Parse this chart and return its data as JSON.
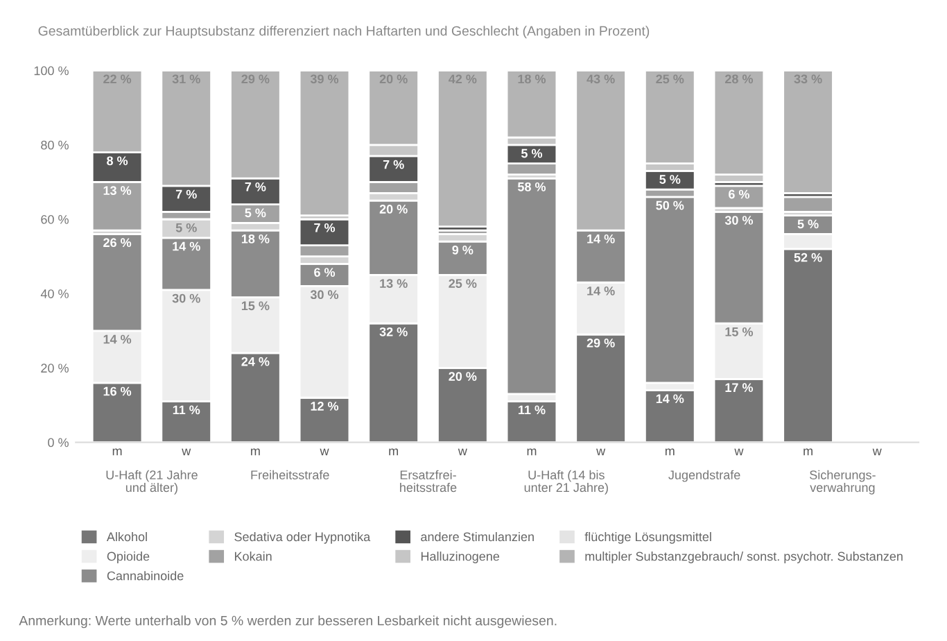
{
  "chart_data": {
    "type": "bar",
    "stacked": true,
    "title": "Gesamtüberblick zur Hauptsubstanz differenziert nach Haftarten und Geschlecht (Angaben in Prozent)",
    "categories": [
      "m",
      "w",
      "m",
      "w",
      "m",
      "w",
      "m",
      "w",
      "m",
      "w",
      "m",
      "w"
    ],
    "ylim": [
      0,
      100
    ],
    "yticks": [
      {
        "value": 0,
        "label": "0 %"
      },
      {
        "value": 20,
        "label": "20 %"
      },
      {
        "value": 40,
        "label": "40 %"
      },
      {
        "value": 60,
        "label": "60 %"
      },
      {
        "value": 80,
        "label": "80 %"
      },
      {
        "value": 100,
        "label": "100 %"
      }
    ],
    "legend": "bottom",
    "series": [
      {
        "name": "Alkohol",
        "color": "#767676",
        "values": [
          16,
          11,
          24,
          12,
          32,
          20,
          11,
          29,
          14,
          17,
          52,
          null
        ],
        "value_labels": [
          "16 %",
          "11 %",
          "24 %",
          "12 %",
          "32 %",
          "20 %",
          "11 %",
          "29 %",
          "14 %",
          "17 %",
          "52 %",
          null
        ]
      },
      {
        "name": "Opioide",
        "color": "#eeeeee",
        "values": [
          14,
          30,
          15,
          30,
          13,
          25,
          2,
          14,
          2,
          15,
          4,
          null
        ],
        "value_labels": [
          "14 %",
          "30 %",
          "15 %",
          "30 %",
          "13 %",
          "25 %",
          null,
          "14 %",
          null,
          "15 %",
          null,
          null
        ]
      },
      {
        "name": "Cannabinoide",
        "color": "#8c8c8c",
        "values": [
          26,
          14,
          18,
          6,
          20,
          9,
          58,
          14,
          50,
          30,
          5,
          null
        ],
        "value_labels": [
          "26 %",
          "14 %",
          "18 %",
          "6 %",
          "20 %",
          "9 %",
          "58 %",
          "14 %",
          "50 %",
          "30 %",
          "5 %",
          null
        ]
      },
      {
        "name": "Sedativa oder Hypnotika",
        "color": "#d4d4d4",
        "values": [
          1,
          5,
          2,
          2,
          2,
          2,
          1,
          0,
          0,
          1,
          1,
          null
        ],
        "value_labels": [
          null,
          "5 %",
          null,
          null,
          null,
          null,
          null,
          null,
          null,
          null,
          null,
          null
        ]
      },
      {
        "name": "Kokain",
        "color": "#a2a2a2",
        "values": [
          13,
          2,
          5,
          3,
          3,
          1,
          3,
          0,
          2,
          6,
          4,
          null
        ],
        "value_labels": [
          "13 %",
          null,
          "5 %",
          null,
          null,
          null,
          null,
          null,
          null,
          "6 %",
          null,
          null
        ]
      },
      {
        "name": "andere Stimulanzien",
        "color": "#555555",
        "values": [
          8,
          7,
          7,
          7,
          7,
          1,
          5,
          0,
          5,
          1,
          1,
          null
        ],
        "value_labels": [
          "8 %",
          "7 %",
          "7 %",
          "7 %",
          "7 %",
          null,
          "5 %",
          null,
          "5 %",
          null,
          null,
          null
        ]
      },
      {
        "name": "Halluzinogene",
        "color": "#c6c6c6",
        "values": [
          0,
          0,
          0,
          1,
          3,
          0,
          2,
          0,
          2,
          2,
          0,
          null
        ]
      },
      {
        "name": "flüchtige Lösungsmittel",
        "color": "#e4e4e4",
        "values": [
          0,
          0,
          0,
          0,
          0,
          0,
          0,
          0,
          0,
          0,
          0,
          null
        ]
      },
      {
        "name": "multipler Substanzgebrauch/ sonst. psychotr. Substanzen",
        "color": "#b4b4b4",
        "values": [
          22,
          31,
          29,
          39,
          20,
          42,
          18,
          43,
          25,
          28,
          33,
          null
        ],
        "value_labels": [
          "22 %",
          "31 %",
          "29 %",
          "39 %",
          "20 %",
          "42 %",
          "18 %",
          "43 %",
          "25 %",
          "28 %",
          "33 %",
          null
        ]
      }
    ],
    "annotations": [
      "U-Haft (21 Jahre\nund älter)",
      "Freiheitsstrafe",
      "Ersatzfrei-\nheitsstrafe",
      "U-Haft (14 bis\nunter 21 Jahre)",
      "Jugendstrafe",
      "Sicherungs-\nverwahrung",
      "Anmerkung: Werte unterhalb von 5 % werden zur besseren Lesbarkeit nicht ausgewiesen."
    ]
  }
}
